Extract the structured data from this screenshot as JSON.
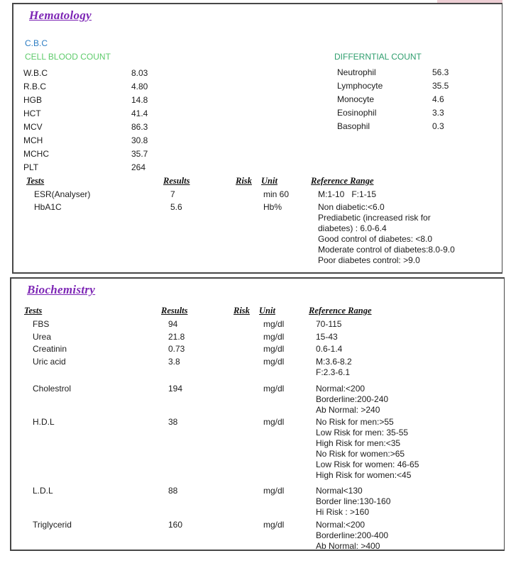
{
  "colors": {
    "section_title": "#7d26b5",
    "cbc_code_blue": "#2d7dc3",
    "cbc_name_green": "#5ecb6b",
    "diff_head_green": "#2f9e6e",
    "border_gray": "#474747",
    "text": "#1c1c1c"
  },
  "report": {
    "hematology": {
      "title": "Hematology",
      "cbc_code": "C.B.C",
      "cbc_label": "CELL BLOOD COUNT",
      "cbc_rows": [
        {
          "label": "W.B.C",
          "value": "8.03"
        },
        {
          "label": "R.B.C",
          "value": "4.80"
        },
        {
          "label": "HGB",
          "value": "14.8"
        },
        {
          "label": "HCT",
          "value": "41.4"
        },
        {
          "label": "MCV",
          "value": "86.3"
        },
        {
          "label": "MCH",
          "value": "30.8"
        },
        {
          "label": "MCHC",
          "value": "35.7"
        },
        {
          "label": "PLT",
          "value": "264"
        }
      ],
      "diff_label": "DIFFERNTIAL COUNT",
      "diff_rows": [
        {
          "label": "Neutrophil",
          "value": "56.3"
        },
        {
          "label": "Lymphocyte",
          "value": "35.5"
        },
        {
          "label": "Monocyte",
          "value": "4.6"
        },
        {
          "label": "Eosinophil",
          "value": "3.3"
        },
        {
          "label": "Basophil",
          "value": "0.3"
        }
      ],
      "table_headers": {
        "tests": "Tests",
        "results": "Results",
        "risk": "Risk",
        "unit": "Unit",
        "reference": "Reference Range"
      },
      "rows": [
        {
          "test": "ESR(Analyser)",
          "result": "7",
          "risk": "",
          "unit": "min 60",
          "reference": "M:1-10   F:1-15"
        },
        {
          "test": "HbA1C",
          "result": "5.6",
          "risk": "",
          "unit": "Hb%",
          "reference": "Non diabetic:<6.0\nPrediabetic (increased risk for\ndiabetes) : 6.0-6.4\nGood control of diabetes: <8.0\nModerate control of diabetes:8.0-9.0\nPoor diabetes control: >9.0"
        }
      ]
    },
    "biochemistry": {
      "title": "Biochemistry",
      "table_headers": {
        "tests": "Tests",
        "results": "Results",
        "risk": "Risk",
        "unit": "Unit",
        "reference": "Reference Range"
      },
      "rows": [
        {
          "test": "FBS",
          "result": "94",
          "risk": "",
          "unit": "mg/dl",
          "reference": "70-115"
        },
        {
          "test": "Urea",
          "result": "21.8",
          "risk": "",
          "unit": "mg/dl",
          "reference": "15-43"
        },
        {
          "test": "Creatinin",
          "result": "0.73",
          "risk": "",
          "unit": "mg/dl",
          "reference": "0.6-1.4"
        },
        {
          "test": "Uric acid",
          "result": "3.8",
          "risk": "",
          "unit": "mg/dl",
          "reference": "M:3.6-8.2\nF:2.3-6.1"
        },
        {
          "test": "Cholestrol",
          "result": "194",
          "risk": "",
          "unit": "mg/dl",
          "reference": "Normal:<200\nBorderline:200-240\nAb Normal: >240"
        },
        {
          "test": "H.D.L",
          "result": "38",
          "risk": "",
          "unit": "mg/dl",
          "reference": "No Risk for men:>55\nLow Risk for men: 35-55\nHigh Risk for men:<35\nNo Risk for women:>65\nLow Risk for women: 46-65\nHigh Risk for women:<45"
        },
        {
          "test": "L.D.L",
          "result": "88",
          "risk": "",
          "unit": "mg/dl",
          "reference": "Normal<130\nBorder line:130-160\nHi Risk : >160"
        },
        {
          "test": "Triglycerid",
          "result": "160",
          "risk": "",
          "unit": "mg/dl",
          "reference": "Normal:<200\nBorderline:200-400\nAb Normal: >400"
        }
      ]
    }
  }
}
